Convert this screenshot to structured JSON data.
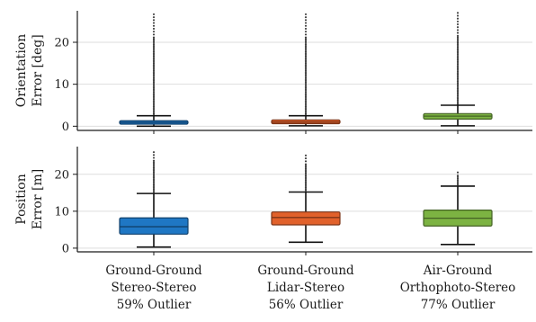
{
  "chart_data": [
    {
      "type": "box",
      "panel": "orientation",
      "ylabel_lines": [
        "Orientation",
        "Error [deg]"
      ],
      "ylim": [
        -1,
        27.5
      ],
      "yticks": [
        0,
        10,
        20
      ],
      "grid": true,
      "boxes": [
        {
          "category": "Ground-Ground Stereo-Stereo",
          "color": "#1f77c4",
          "whisker_low": 0.0,
          "q1": 0.5,
          "median": 0.9,
          "q3": 1.3,
          "whisker_high": 2.5,
          "flier_min": 2.6,
          "flier_max": 27
        },
        {
          "category": "Ground-Ground Lidar-Stereo",
          "color": "#e1612b",
          "whisker_low": 0.1,
          "q1": 0.6,
          "median": 1.0,
          "q3": 1.5,
          "whisker_high": 2.5,
          "flier_min": 2.6,
          "flier_max": 27
        },
        {
          "category": "Air-Ground Orthophoto-Stereo",
          "color": "#7cb342",
          "whisker_low": 0.1,
          "q1": 1.7,
          "median": 2.4,
          "q3": 3.0,
          "whisker_high": 5.0,
          "flier_min": 5.2,
          "flier_max": 27
        }
      ]
    },
    {
      "type": "box",
      "panel": "position",
      "ylabel_lines": [
        "Position",
        "Error [m]"
      ],
      "ylim": [
        -1,
        27.5
      ],
      "yticks": [
        0,
        10,
        20
      ],
      "grid": true,
      "boxes": [
        {
          "category": "Ground-Ground Stereo-Stereo",
          "color": "#1f77c4",
          "whisker_low": 0.3,
          "q1": 3.8,
          "median": 5.8,
          "q3": 8.2,
          "whisker_high": 14.8,
          "flier_min": 15.2,
          "flier_max": 26
        },
        {
          "category": "Ground-Ground Lidar-Stereo",
          "color": "#e1612b",
          "whisker_low": 1.6,
          "q1": 6.3,
          "median": 8.3,
          "q3": 9.8,
          "whisker_high": 15.2,
          "flier_min": 15.6,
          "flier_max": 25.5
        },
        {
          "category": "Air-Ground Orthophoto-Stereo",
          "color": "#7cb342",
          "whisker_low": 1.0,
          "q1": 6.0,
          "median": 8.1,
          "q3": 10.3,
          "whisker_high": 16.8,
          "flier_min": 17.2,
          "flier_max": 20.5
        }
      ]
    }
  ],
  "category_labels": [
    {
      "line1": "Ground-Ground",
      "line2": "Stereo-Stereo",
      "line3": "59% Outlier"
    },
    {
      "line1": "Ground-Ground",
      "line2": "Lidar-Stereo",
      "line3": "56% Outlier"
    },
    {
      "line1": "Air-Ground",
      "line2": "Orthophoto-Stereo",
      "line3": "77% Outlier"
    }
  ]
}
